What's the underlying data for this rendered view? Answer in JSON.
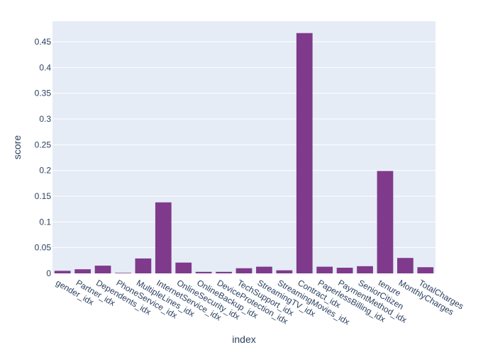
{
  "chart_data": {
    "type": "bar",
    "xlabel": "index",
    "ylabel": "score",
    "ylim": [
      0,
      0.49
    ],
    "y_ticks": [
      0,
      0.05,
      0.1,
      0.15,
      0.2,
      0.25,
      0.3,
      0.35,
      0.4,
      0.45
    ],
    "y_tick_labels": [
      "0",
      "0.05",
      "0.1",
      "0.15",
      "0.2",
      "0.25",
      "0.3",
      "0.35",
      "0.4",
      "0.45"
    ],
    "grid": true,
    "legend": "none",
    "colors": {
      "bar": "#7f3a8c",
      "plot_background": "#e5ecf6",
      "grid": "#ffffff",
      "text": "#2a3f5f"
    },
    "categories": [
      "gender_idx",
      "Partner_idx",
      "Dependents_idx",
      "PhoneService_idx",
      "MultipleLines_idx",
      "InternetService_idx",
      "OnlineSecurity_idx",
      "OnlineBackup_idx",
      "DeviceProtection_idx",
      "TechSupport_idx",
      "StreamingTV_idx",
      "StreamingMovies_idx",
      "Contract_idx",
      "PaperlessBilling_idx",
      "PaymentMethod_idx",
      "SeniorCitizen",
      "tenure",
      "MonthlyCharges",
      "TotalCharges"
    ],
    "values": [
      0.005,
      0.008,
      0.015,
      0.001,
      0.029,
      0.138,
      0.021,
      0.003,
      0.003,
      0.01,
      0.013,
      0.006,
      0.467,
      0.013,
      0.011,
      0.014,
      0.199,
      0.03,
      0.012
    ]
  }
}
